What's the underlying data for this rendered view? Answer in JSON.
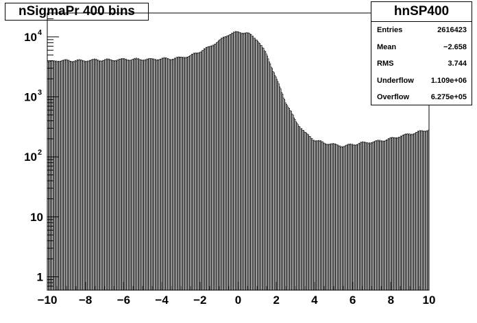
{
  "title": "nSigmaPr 400 bins",
  "stats": {
    "name": "hnSP400",
    "rows": [
      {
        "label": "Entries",
        "value": "2616423"
      },
      {
        "label": "Mean",
        "value": "−2.658"
      },
      {
        "label": "RMS",
        "value": "3.744"
      },
      {
        "label": "Underflow",
        "value": "1.109e+06"
      },
      {
        "label": "Overflow",
        "value": "6.275e+05"
      }
    ]
  },
  "chart_data": {
    "type": "bar",
    "xlim": [
      -10,
      10
    ],
    "ylim": [
      0.6,
      25000
    ],
    "log_y": true,
    "bins": 400,
    "grid": false,
    "legend": "top-right",
    "x_ticks": [
      "−10",
      "−8",
      "−6",
      "−4",
      "−2",
      "0",
      "2",
      "4",
      "6",
      "8",
      "10"
    ],
    "y_ticks": [
      {
        "label": "1",
        "exp": "",
        "value": 1
      },
      {
        "label": "10",
        "exp": "",
        "value": 10
      },
      {
        "label": "10",
        "exp": "2",
        "value": 100
      },
      {
        "label": "10",
        "exp": "3",
        "value": 1000
      },
      {
        "label": "10",
        "exp": "4",
        "value": 10000
      }
    ],
    "x": [
      -9.9,
      -9.5,
      -9.0,
      -8.5,
      -8.0,
      -7.5,
      -7.0,
      -6.5,
      -6.0,
      -5.5,
      -5.0,
      -4.5,
      -4.0,
      -3.5,
      -3.0,
      -2.5,
      -2.0,
      -1.5,
      -1.0,
      -0.5,
      0.0,
      0.5,
      1.0,
      1.5,
      2.0,
      2.5,
      3.0,
      3.5,
      4.0,
      4.5,
      5.0,
      5.5,
      6.0,
      6.5,
      7.0,
      7.5,
      8.0,
      8.5,
      9.0,
      9.5,
      9.9
    ],
    "values": [
      3800,
      4000,
      4000,
      4000,
      4000,
      4100,
      4100,
      4100,
      4200,
      4200,
      4200,
      4200,
      4300,
      4300,
      4500,
      4800,
      5700,
      6800,
      8500,
      11000,
      12000,
      11500,
      9000,
      5000,
      2000,
      800,
      400,
      250,
      190,
      170,
      160,
      150,
      160,
      170,
      175,
      185,
      200,
      220,
      240,
      260,
      280
    ]
  }
}
